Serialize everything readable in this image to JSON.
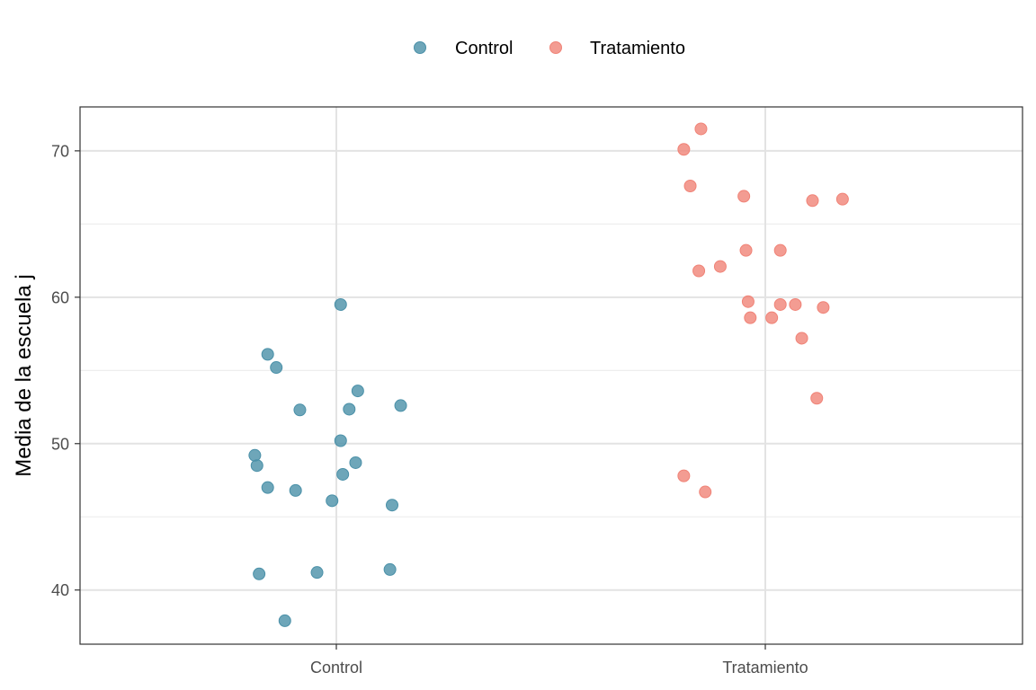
{
  "chart_data": {
    "type": "scatter",
    "title": "",
    "xlabel": "",
    "ylabel": "Media de la escuela j",
    "categories": [
      "Control",
      "Tratamiento"
    ],
    "ylim": [
      36.3,
      73.0
    ],
    "yticks": [
      40,
      50,
      60,
      70
    ],
    "grid": true,
    "legend_position": "top",
    "series": [
      {
        "name": "Control",
        "color": "#4a90a8",
        "points": [
          {
            "x": "Control",
            "jitter": 0.01,
            "y": 59.5
          },
          {
            "x": "Control",
            "jitter": -0.16,
            "y": 56.1
          },
          {
            "x": "Control",
            "jitter": -0.14,
            "y": 55.2
          },
          {
            "x": "Control",
            "jitter": 0.05,
            "y": 53.6
          },
          {
            "x": "Control",
            "jitter": 0.15,
            "y": 52.6
          },
          {
            "x": "Control",
            "jitter": -0.085,
            "y": 52.3
          },
          {
            "x": "Control",
            "jitter": 0.03,
            "y": 52.35
          },
          {
            "x": "Control",
            "jitter": 0.01,
            "y": 50.2
          },
          {
            "x": "Control",
            "jitter": -0.19,
            "y": 49.2
          },
          {
            "x": "Control",
            "jitter": -0.185,
            "y": 48.5
          },
          {
            "x": "Control",
            "jitter": 0.045,
            "y": 48.7
          },
          {
            "x": "Control",
            "jitter": 0.015,
            "y": 47.9
          },
          {
            "x": "Control",
            "jitter": -0.16,
            "y": 47.0
          },
          {
            "x": "Control",
            "jitter": -0.095,
            "y": 46.8
          },
          {
            "x": "Control",
            "jitter": -0.01,
            "y": 46.1
          },
          {
            "x": "Control",
            "jitter": 0.13,
            "y": 45.8
          },
          {
            "x": "Control",
            "jitter": -0.045,
            "y": 41.2
          },
          {
            "x": "Control",
            "jitter": -0.18,
            "y": 41.1
          },
          {
            "x": "Control",
            "jitter": 0.125,
            "y": 41.4
          },
          {
            "x": "Control",
            "jitter": -0.12,
            "y": 37.9
          }
        ]
      },
      {
        "name": "Tratamiento",
        "color": "#f08377",
        "points": [
          {
            "x": "Tratamiento",
            "jitter": -0.15,
            "y": 71.5
          },
          {
            "x": "Tratamiento",
            "jitter": -0.19,
            "y": 70.1
          },
          {
            "x": "Tratamiento",
            "jitter": -0.175,
            "y": 67.6
          },
          {
            "x": "Tratamiento",
            "jitter": -0.05,
            "y": 66.9
          },
          {
            "x": "Tratamiento",
            "jitter": 0.11,
            "y": 66.6
          },
          {
            "x": "Tratamiento",
            "jitter": 0.18,
            "y": 66.7
          },
          {
            "x": "Tratamiento",
            "jitter": -0.045,
            "y": 63.2
          },
          {
            "x": "Tratamiento",
            "jitter": 0.035,
            "y": 63.2
          },
          {
            "x": "Tratamiento",
            "jitter": -0.105,
            "y": 62.1
          },
          {
            "x": "Tratamiento",
            "jitter": -0.155,
            "y": 61.8
          },
          {
            "x": "Tratamiento",
            "jitter": -0.04,
            "y": 59.7
          },
          {
            "x": "Tratamiento",
            "jitter": 0.035,
            "y": 59.5
          },
          {
            "x": "Tratamiento",
            "jitter": 0.07,
            "y": 59.5
          },
          {
            "x": "Tratamiento",
            "jitter": 0.135,
            "y": 59.3
          },
          {
            "x": "Tratamiento",
            "jitter": -0.035,
            "y": 58.6
          },
          {
            "x": "Tratamiento",
            "jitter": 0.015,
            "y": 58.6
          },
          {
            "x": "Tratamiento",
            "jitter": 0.085,
            "y": 57.2
          },
          {
            "x": "Tratamiento",
            "jitter": 0.12,
            "y": 53.1
          },
          {
            "x": "Tratamiento",
            "jitter": -0.19,
            "y": 47.8
          },
          {
            "x": "Tratamiento",
            "jitter": -0.14,
            "y": 46.7
          }
        ]
      }
    ]
  }
}
